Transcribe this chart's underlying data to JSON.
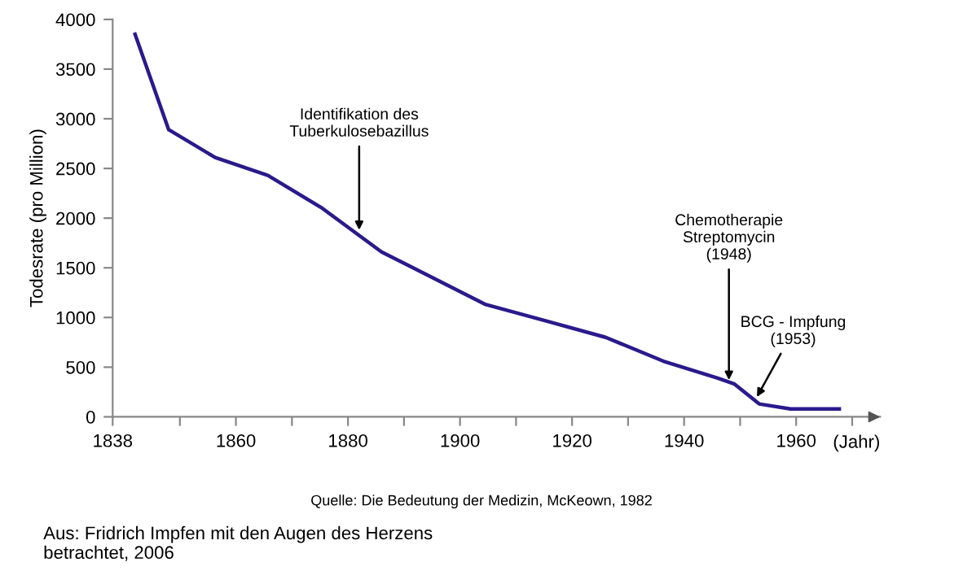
{
  "chart_data": {
    "type": "line",
    "ylabel": "Todesrate (pro Million)",
    "xlabel": "(Jahr)",
    "x": [
      1842,
      1848,
      1856.3,
      1865.7,
      1875.4,
      1886,
      1904.6,
      1915,
      1926,
      1936.3,
      1946,
      1949,
      1953.4,
      1959,
      1967.7
    ],
    "series": [
      {
        "color": "#2a1a8c",
        "values": [
          3850,
          2890,
          2610,
          2430,
          2100,
          1660,
          1130,
          970,
          800,
          560,
          390,
          330,
          130,
          80,
          80
        ]
      }
    ],
    "xlim": [
      1838,
      1975
    ],
    "ylim": [
      0,
      4000
    ],
    "xticks": [
      1838,
      {
        "value": 1850,
        "label": null
      },
      1860,
      {
        "value": 1870,
        "label": null
      },
      1880,
      {
        "value": 1890,
        "label": null
      },
      1900,
      {
        "value": 1910,
        "label": null
      },
      1920,
      {
        "value": 1930,
        "label": null
      },
      1940,
      {
        "value": 1950,
        "label": null
      },
      1960,
      {
        "value": 1970,
        "label": null
      }
    ],
    "yticks": [
      0,
      500,
      1000,
      1500,
      2000,
      2500,
      3000,
      3500,
      4000
    ],
    "grid": false,
    "marker": "none",
    "line_style": "solid",
    "annotations": [
      {
        "text": "Identifikation des\nTuberkulosebazillus",
        "x": 1882,
        "y": 1880
      },
      {
        "text": "Chemotherapie\nStreptomycin\n(1948)",
        "x": 1948,
        "y": 370
      },
      {
        "text": "BCG - Impfung\n(1953)",
        "x": 1953,
        "y": 200
      },
      "Quelle: Die Bedeutung der Medizin, McKeown, 1982",
      "Aus: Fridrich Impfen mit den Augen des Herzens\nbetrachtet, 2006"
    ]
  }
}
